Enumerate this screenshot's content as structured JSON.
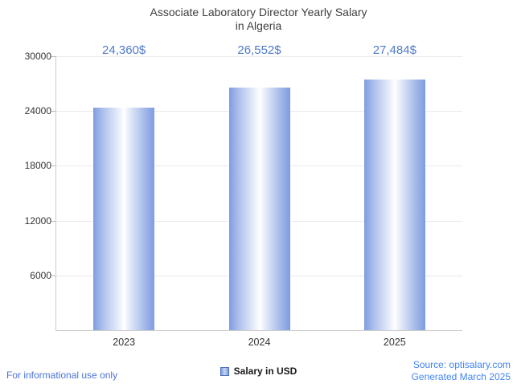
{
  "header": {
    "title_line1": "Associate Laboratory Director Yearly Salary",
    "title_line2": "in Algeria"
  },
  "chart_data": {
    "type": "bar",
    "title": "Associate Laboratory Director Yearly Salary in Algeria",
    "categories": [
      "2023",
      "2024",
      "2025"
    ],
    "values": [
      24360,
      26552,
      27484
    ],
    "value_labels": [
      "24,360$",
      "26,552$",
      "27,484$"
    ],
    "xlabel": "",
    "ylabel": "",
    "ylim": [
      0,
      30000
    ],
    "yticks": [
      6000,
      12000,
      18000,
      24000,
      30000
    ],
    "grid": true,
    "legend_position": "bottom",
    "series_name": "Salary in USD"
  },
  "legend": {
    "label": "Salary in USD",
    "swatch_color": "#7f9ce1"
  },
  "footer": {
    "left": "For informational use only",
    "source": "Source: optisalary.com",
    "generated": "Generated March 2025"
  },
  "colors": {
    "bar_edge": "#7f9ce1",
    "bar_center": "#ffffff",
    "value_label": "#4f7bc8",
    "axis": "#cccccc",
    "footer_blue": "#4285f4"
  }
}
